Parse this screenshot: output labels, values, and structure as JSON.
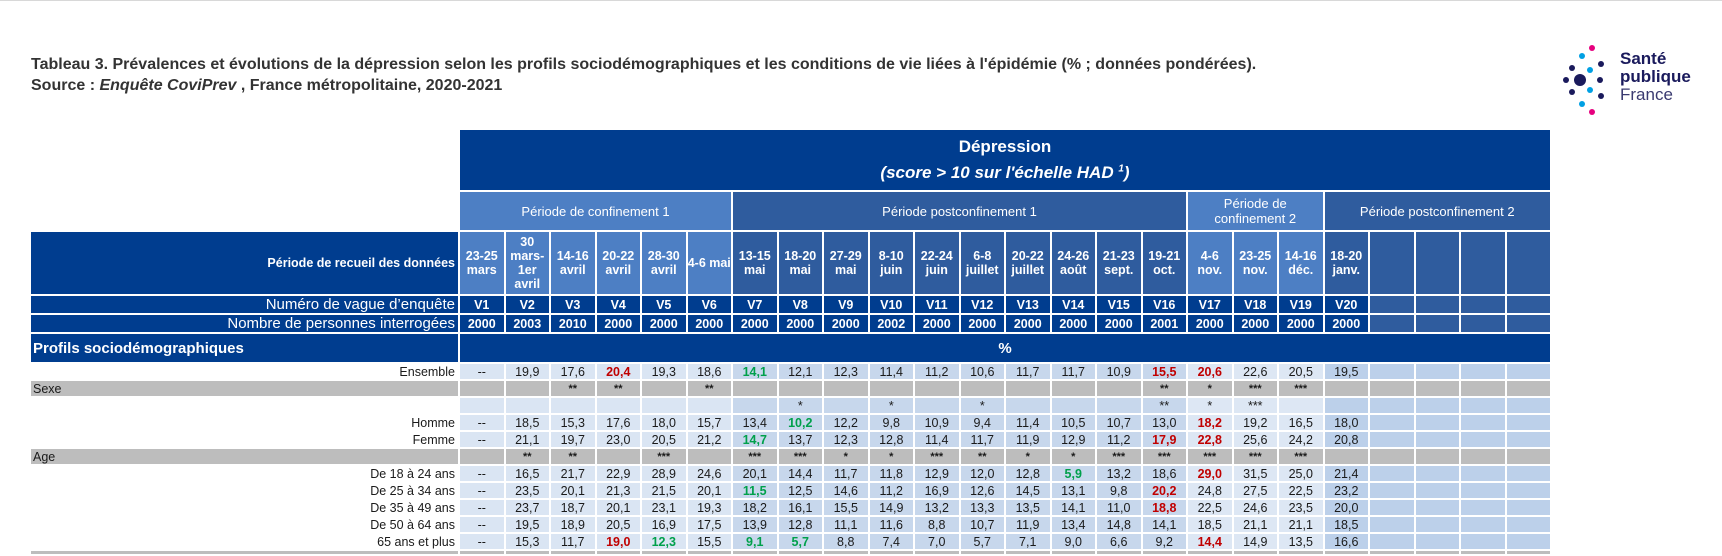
{
  "title": {
    "line1": "Tableau 3. Prévalences et évolutions de la dépression selon les profils sociodémographiques et les conditions de vie liées à l'épidémie (% ; données pondérées).",
    "line2_prefix": "Source : ",
    "line2_italic": "Enquête CoviPrev",
    "line2_suffix": " , France métropolitaine, 2020-2021"
  },
  "logo": {
    "line1": "Santé",
    "line2": "publique",
    "line3": "France",
    "dot_colors": [
      "#1a1a5c",
      "#e6007e",
      "#00a0e3"
    ]
  },
  "header": {
    "main": "Dépression",
    "sub_prefix": "(score > 10 sur l'échelle HAD ",
    "sub_sup": "1",
    "sub_suffix": ")"
  },
  "periods": [
    "Période de confinement  1",
    "Période postconfinement 1",
    "Période de confinement 2",
    "Période postconfinement 2"
  ],
  "row_labels": {
    "dates": "Période de recueil des données",
    "waves": "Numéro de vague d’enquête",
    "persons": "Nombre de personnes interrogées"
  },
  "dates": [
    "23-25 mars",
    "30 mars-1er avril",
    "14-16 avril",
    "20-22 avril",
    "28-30 avril",
    "4-6 mai",
    "13-15 mai",
    "18-20 mai",
    "27-29 mai",
    "8-10 juin",
    "22-24 juin",
    "6-8 juillet",
    "20-22 juillet",
    "24-26 août",
    "21-23 sept.",
    "19-21 oct.",
    "4-6 nov.",
    "23-25 nov.",
    "14-16 déc.",
    "18-20 janv."
  ],
  "waves": [
    "V1",
    "V2",
    "V3",
    "V4",
    "V5",
    "V6",
    "V7",
    "V8",
    "V9",
    "V10",
    "V11",
    "V12",
    "V13",
    "V14",
    "V15",
    "V16",
    "V17",
    "V18",
    "V19",
    "V20"
  ],
  "persons": [
    "2000",
    "2003",
    "2010",
    "2000",
    "2000",
    "2000",
    "2000",
    "2000",
    "2000",
    "2002",
    "2000",
    "2000",
    "2000",
    "2000",
    "2000",
    "2001",
    "2000",
    "2000",
    "2000",
    "2000"
  ],
  "section": {
    "label": "Profils sociodémographiques",
    "unit": "%"
  },
  "rows": {
    "ensemble": {
      "label": "Ensemble",
      "v": [
        "--",
        "19,9",
        "17,6",
        "20,4",
        "19,3",
        "18,6",
        "14,1",
        "12,1",
        "12,3",
        "11,4",
        "11,2",
        "10,6",
        "11,7",
        "11,7",
        "10,9",
        "15,5",
        "20,6",
        "22,6",
        "20,5",
        "19,5"
      ],
      "s": [
        "",
        "",
        "**",
        "**",
        "",
        "**",
        "",
        "",
        "",
        "",
        "",
        "",
        "",
        "",
        "",
        "**",
        "*",
        "***",
        "***",
        ""
      ]
    },
    "sexe": {
      "label": "Sexe",
      "s": [
        "",
        "",
        "",
        "",
        "",
        "",
        "",
        "*",
        "",
        "*",
        "",
        "*",
        "",
        "",
        "",
        "**",
        "*",
        "***",
        "",
        ""
      ]
    },
    "homme": {
      "label": "Homme",
      "v": [
        "--",
        "18,5",
        "15,3",
        "17,6",
        "18,0",
        "15,7",
        "13,4",
        "10,2",
        "12,2",
        "9,8",
        "10,9",
        "9,4",
        "11,4",
        "10,5",
        "10,7",
        "13,0",
        "18,2",
        "19,2",
        "16,5",
        "18,0"
      ]
    },
    "femme": {
      "label": "Femme",
      "v": [
        "--",
        "21,1",
        "19,7",
        "23,0",
        "20,5",
        "21,2",
        "14,7",
        "13,7",
        "12,3",
        "12,8",
        "11,4",
        "11,7",
        "11,9",
        "12,9",
        "11,2",
        "17,9",
        "22,8",
        "25,6",
        "24,2",
        "20,8"
      ]
    },
    "age": {
      "label": "Age",
      "s": [
        "",
        "**",
        "**",
        "",
        "***",
        "",
        "***",
        "***",
        "*",
        "*",
        "***",
        "**",
        "*",
        "*",
        "***",
        "***",
        "***",
        "***",
        "***",
        ""
      ]
    },
    "a18": {
      "label": "De 18 à 24 ans",
      "v": [
        "--",
        "16,5",
        "21,7",
        "22,9",
        "28,9",
        "24,6",
        "20,1",
        "14,4",
        "11,7",
        "11,8",
        "12,9",
        "12,0",
        "12,8",
        "5,9",
        "13,2",
        "18,6",
        "29,0",
        "31,5",
        "25,0",
        "21,4"
      ]
    },
    "a25": {
      "label": "De 25 à 34 ans",
      "v": [
        "--",
        "23,5",
        "20,1",
        "21,3",
        "21,5",
        "20,1",
        "11,5",
        "12,5",
        "14,6",
        "11,2",
        "16,9",
        "12,6",
        "14,5",
        "13,1",
        "9,8",
        "20,2",
        "24,8",
        "27,5",
        "22,5",
        "23,2"
      ]
    },
    "a35": {
      "label": "De 35 à 49 ans",
      "v": [
        "--",
        "23,7",
        "18,7",
        "20,1",
        "23,1",
        "19,3",
        "18,2",
        "16,1",
        "15,5",
        "14,9",
        "13,2",
        "13,3",
        "13,5",
        "14,1",
        "11,0",
        "18,8",
        "22,5",
        "24,6",
        "23,5",
        "20,0"
      ]
    },
    "a50": {
      "label": "De 50 à 64 ans",
      "v": [
        "--",
        "19,5",
        "18,9",
        "20,5",
        "16,9",
        "17,5",
        "13,9",
        "12,8",
        "11,1",
        "11,6",
        "8,8",
        "10,7",
        "11,9",
        "13,4",
        "14,8",
        "14,1",
        "18,5",
        "21,1",
        "21,1",
        "18,5"
      ]
    },
    "a65": {
      "label": "65 ans et plus",
      "v": [
        "--",
        "15,3",
        "11,7",
        "19,0",
        "12,3",
        "15,5",
        "9,1",
        "5,7",
        "8,8",
        "7,4",
        "7,0",
        "5,7",
        "7,1",
        "9,0",
        "6,6",
        "9,2",
        "14,4",
        "14,9",
        "13,5",
        "16,6"
      ]
    }
  },
  "highlights": {
    "red_color": "#c00000",
    "green_color": "#00a04b",
    "red": [
      "ensemble.3",
      "ensemble.15",
      "ensemble.16",
      "homme.16",
      "femme.15",
      "femme.16",
      "a18.16",
      "a25.15",
      "a35.15",
      "a65.3",
      "a65.16"
    ],
    "green": [
      "ensemble.6",
      "homme.7",
      "femme.6",
      "a18.13",
      "a25.6",
      "a65.4",
      "a65.6",
      "a65.7"
    ]
  },
  "colors": {
    "dark_blue": "#003d8f",
    "mid_blue": "#2f5c9e",
    "light_blue": "#4d7fc4",
    "gray": "#bdbdbd"
  }
}
